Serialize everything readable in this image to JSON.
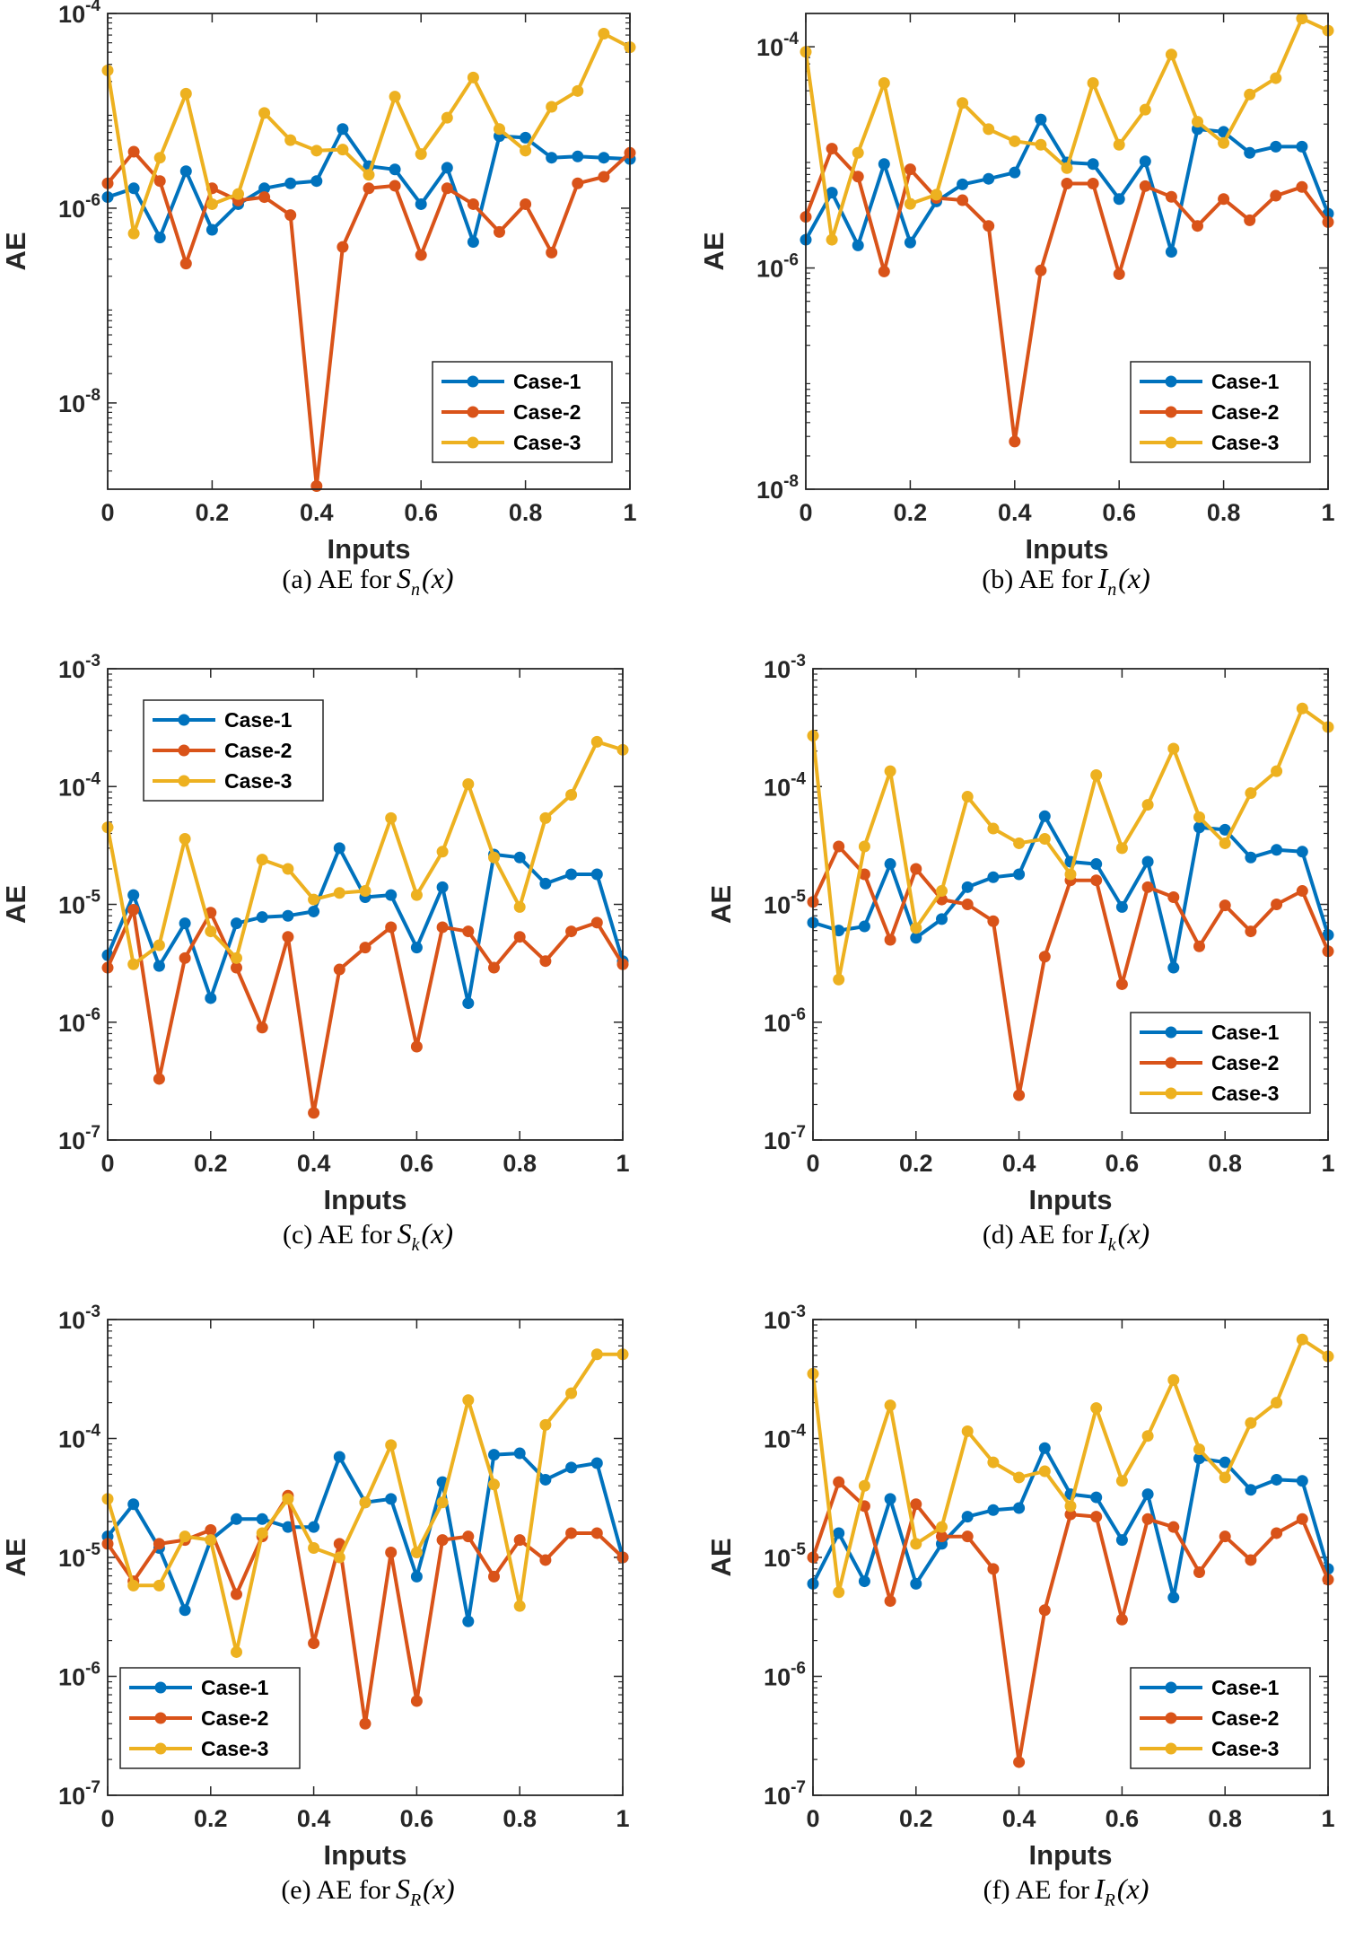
{
  "x_axis_label": "Inputs",
  "y_axis_label": "AE",
  "chart_data": [
    {
      "type": "line",
      "id": "a",
      "caption": "(a) AE for",
      "fn": "S",
      "sub": "n",
      "arg": "(x)",
      "ylog": [
        -9,
        -4
      ],
      "ylim": [
        1.3e-09,
        0.0001
      ],
      "yticks": [
        -8,
        -6,
        -4
      ],
      "xlim": [
        0,
        1
      ],
      "x": [
        0,
        0.05,
        0.1,
        0.15,
        0.2,
        0.25,
        0.3,
        0.35,
        0.4,
        0.45,
        0.5,
        0.55,
        0.6,
        0.65,
        0.7,
        0.75,
        0.8,
        0.85,
        0.9,
        0.95,
        1.0
      ],
      "legend": "bottom-right",
      "series": [
        {
          "name": "Case-1",
          "color": "#0072BD",
          "values": [
            1.3e-06,
            1.6e-06,
            5e-07,
            2.4e-06,
            6e-07,
            1.1e-06,
            1.6e-06,
            1.8e-06,
            1.9e-06,
            6.5e-06,
            2.7e-06,
            2.5e-06,
            1.1e-06,
            2.6e-06,
            4.5e-07,
            5.5e-06,
            5.3e-06,
            3.3e-06,
            3.4e-06,
            3.3e-06,
            3.2e-06
          ]
        },
        {
          "name": "Case-2",
          "color": "#D95319",
          "values": [
            1.8e-06,
            3.8e-06,
            1.9e-06,
            2.7e-07,
            1.6e-06,
            1.2e-06,
            1.3e-06,
            8.5e-07,
            1.4e-09,
            4e-07,
            1.6e-06,
            1.7e-06,
            3.3e-07,
            1.6e-06,
            1.1e-06,
            5.7e-07,
            1.1e-06,
            3.5e-07,
            1.8e-06,
            2.1e-06,
            3.7e-06
          ]
        },
        {
          "name": "Case-3",
          "color": "#EDB120",
          "values": [
            2.6e-05,
            5.5e-07,
            3.3e-06,
            1.5e-05,
            1.1e-06,
            1.4e-06,
            9.5e-06,
            5e-06,
            3.9e-06,
            4e-06,
            2.2e-06,
            1.4e-05,
            3.6e-06,
            8.5e-06,
            2.2e-05,
            6.5e-06,
            3.9e-06,
            1.1e-05,
            1.6e-05,
            6.2e-05,
            4.5e-05
          ]
        }
      ]
    },
    {
      "type": "line",
      "id": "b",
      "caption": "(b) AE for",
      "fn": "I",
      "sub": "n",
      "arg": "(x)",
      "ylog": [
        -8,
        -4
      ],
      "ylim": [
        1e-08,
        0.0002
      ],
      "yticks": [
        -8,
        -6,
        -4
      ],
      "xlim": [
        0,
        1
      ],
      "x": [
        0,
        0.05,
        0.1,
        0.15,
        0.2,
        0.25,
        0.3,
        0.35,
        0.4,
        0.45,
        0.5,
        0.55,
        0.6,
        0.65,
        0.7,
        0.75,
        0.8,
        0.85,
        0.9,
        0.95,
        1.0
      ],
      "legend": "bottom-right",
      "series": [
        {
          "name": "Case-1",
          "color": "#0072BD",
          "values": [
            1.8e-06,
            4.8e-06,
            1.6e-06,
            8.7e-06,
            1.7e-06,
            4e-06,
            5.7e-06,
            6.4e-06,
            7.3e-06,
            2.2e-05,
            9e-06,
            8.7e-06,
            4.2e-06,
            9.2e-06,
            1.4e-06,
            1.8e-05,
            1.7e-05,
            1.1e-05,
            1.25e-05,
            1.25e-05,
            3.1e-06
          ]
        },
        {
          "name": "Case-2",
          "color": "#D95319",
          "values": [
            2.9e-06,
            1.2e-05,
            6.7e-06,
            9.3e-07,
            7.8e-06,
            4.3e-06,
            4.1e-06,
            2.4e-06,
            2.7e-08,
            9.5e-07,
            5.8e-06,
            5.8e-06,
            8.8e-07,
            5.5e-06,
            4.4e-06,
            2.4e-06,
            4.2e-06,
            2.7e-06,
            4.5e-06,
            5.4e-06,
            2.6e-06
          ]
        },
        {
          "name": "Case-3",
          "color": "#EDB120",
          "values": [
            9e-05,
            1.8e-06,
            1.1e-05,
            4.7e-05,
            3.8e-06,
            4.6e-06,
            3.1e-05,
            1.8e-05,
            1.4e-05,
            1.3e-05,
            8e-06,
            4.7e-05,
            1.3e-05,
            2.7e-05,
            8.5e-05,
            2.1e-05,
            1.35e-05,
            3.7e-05,
            5.2e-05,
            0.00018,
            0.00014
          ]
        }
      ]
    },
    {
      "type": "line",
      "id": "c",
      "caption": "(c) AE for",
      "fn": "S",
      "sub": "k",
      "arg": "(x)",
      "ylog": [
        -7,
        -3
      ],
      "ylim": [
        1e-07,
        0.001
      ],
      "yticks": [
        -7,
        -6,
        -5,
        -4,
        -3
      ],
      "xlim": [
        0,
        1
      ],
      "x": [
        0,
        0.05,
        0.1,
        0.15,
        0.2,
        0.25,
        0.3,
        0.35,
        0.4,
        0.45,
        0.5,
        0.55,
        0.6,
        0.65,
        0.7,
        0.75,
        0.8,
        0.85,
        0.9,
        0.95,
        1.0
      ],
      "legend": "top-left",
      "series": [
        {
          "name": "Case-1",
          "color": "#0072BD",
          "values": [
            3.7e-06,
            1.2e-05,
            3e-06,
            6.9e-06,
            1.6e-06,
            6.9e-06,
            7.8e-06,
            8e-06,
            8.7e-06,
            3e-05,
            1.15e-05,
            1.2e-05,
            4.3e-06,
            1.4e-05,
            1.45e-06,
            2.65e-05,
            2.5e-05,
            1.5e-05,
            1.8e-05,
            1.8e-05,
            3.3e-06
          ]
        },
        {
          "name": "Case-2",
          "color": "#D95319",
          "values": [
            2.9e-06,
            9e-06,
            3.3e-07,
            3.5e-06,
            8.5e-06,
            2.9e-06,
            9e-07,
            5.3e-06,
            1.7e-07,
            2.8e-06,
            4.3e-06,
            6.4e-06,
            6.2e-07,
            6.4e-06,
            5.9e-06,
            2.9e-06,
            5.3e-06,
            3.3e-06,
            5.9e-06,
            7e-06,
            3.1e-06
          ]
        },
        {
          "name": "Case-3",
          "color": "#EDB120",
          "values": [
            4.5e-05,
            3.1e-06,
            4.5e-06,
            3.6e-05,
            5.9e-06,
            3.5e-06,
            2.4e-05,
            2e-05,
            1.1e-05,
            1.25e-05,
            1.3e-05,
            5.4e-05,
            1.2e-05,
            2.8e-05,
            0.000105,
            2.5e-05,
            9.5e-06,
            5.4e-05,
            8.5e-05,
            0.00024,
            0.000205
          ]
        }
      ]
    },
    {
      "type": "line",
      "id": "d",
      "caption": "(d) AE for",
      "fn": "I",
      "sub": "k",
      "arg": "(x)",
      "ylog": [
        -7,
        -3
      ],
      "ylim": [
        1e-07,
        0.001
      ],
      "yticks": [
        -7,
        -6,
        -5,
        -4,
        -3
      ],
      "xlim": [
        0,
        1
      ],
      "x": [
        0,
        0.05,
        0.1,
        0.15,
        0.2,
        0.25,
        0.3,
        0.35,
        0.4,
        0.45,
        0.5,
        0.55,
        0.6,
        0.65,
        0.7,
        0.75,
        0.8,
        0.85,
        0.9,
        0.95,
        1.0
      ],
      "legend": "bottom-right",
      "series": [
        {
          "name": "Case-1",
          "color": "#0072BD",
          "values": [
            7e-06,
            6e-06,
            6.5e-06,
            2.2e-05,
            5.2e-06,
            7.5e-06,
            1.4e-05,
            1.7e-05,
            1.8e-05,
            5.6e-05,
            2.3e-05,
            2.2e-05,
            9.5e-06,
            2.3e-05,
            2.9e-06,
            4.5e-05,
            4.3e-05,
            2.5e-05,
            2.9e-05,
            2.8e-05,
            5.5e-06
          ]
        },
        {
          "name": "Case-2",
          "color": "#D95319",
          "values": [
            1.05e-05,
            3.1e-05,
            1.8e-05,
            5e-06,
            2e-05,
            1.1e-05,
            1e-05,
            7.2e-06,
            2.4e-07,
            3.6e-06,
            1.6e-05,
            1.6e-05,
            2.1e-06,
            1.4e-05,
            1.15e-05,
            4.4e-06,
            9.8e-06,
            5.9e-06,
            1e-05,
            1.3e-05,
            4e-06
          ]
        },
        {
          "name": "Case-3",
          "color": "#EDB120",
          "values": [
            0.00027,
            2.3e-06,
            3.1e-05,
            0.000135,
            6.3e-06,
            1.3e-05,
            8.2e-05,
            4.4e-05,
            3.3e-05,
            3.6e-05,
            1.8e-05,
            0.000125,
            3e-05,
            7e-05,
            0.00021,
            5.5e-05,
            3.3e-05,
            8.8e-05,
            0.000135,
            0.00046,
            0.00032
          ]
        }
      ]
    },
    {
      "type": "line",
      "id": "e",
      "caption": "(e) AE for",
      "fn": "S",
      "sub": "R",
      "arg": "(x)",
      "ylog": [
        -7,
        -3
      ],
      "ylim": [
        1e-07,
        0.001
      ],
      "yticks": [
        -7,
        -6,
        -5,
        -4,
        -3
      ],
      "xlim": [
        0,
        1
      ],
      "x": [
        0,
        0.05,
        0.1,
        0.15,
        0.2,
        0.25,
        0.3,
        0.35,
        0.4,
        0.45,
        0.5,
        0.55,
        0.6,
        0.65,
        0.7,
        0.75,
        0.8,
        0.85,
        0.9,
        0.95,
        1.0
      ],
      "legend": "bottom-left",
      "series": [
        {
          "name": "Case-1",
          "color": "#0072BD",
          "values": [
            1.5e-05,
            2.8e-05,
            1.2e-05,
            3.6e-06,
            1.4e-05,
            2.1e-05,
            2.1e-05,
            1.8e-05,
            1.8e-05,
            7e-05,
            2.9e-05,
            3.1e-05,
            6.9e-06,
            4.3e-05,
            2.9e-06,
            7.3e-05,
            7.5e-05,
            4.5e-05,
            5.7e-05,
            6.2e-05,
            1e-05
          ]
        },
        {
          "name": "Case-2",
          "color": "#D95319",
          "values": [
            1.3e-05,
            6.3e-06,
            1.3e-05,
            1.4e-05,
            1.7e-05,
            4.9e-06,
            1.5e-05,
            3.3e-05,
            1.9e-06,
            1.3e-05,
            4e-07,
            1.1e-05,
            6.2e-07,
            1.4e-05,
            1.5e-05,
            6.9e-06,
            1.4e-05,
            9.5e-06,
            1.6e-05,
            1.6e-05,
            1e-05
          ]
        },
        {
          "name": "Case-3",
          "color": "#EDB120",
          "values": [
            3.1e-05,
            5.8e-06,
            5.8e-06,
            1.5e-05,
            1.4e-05,
            1.6e-06,
            1.6e-05,
            3.1e-05,
            1.2e-05,
            1e-05,
            2.9e-05,
            8.8e-05,
            1.1e-05,
            2.9e-05,
            0.00021,
            4.1e-05,
            3.9e-06,
            0.00013,
            0.00024,
            0.00051,
            0.00051
          ]
        }
      ]
    },
    {
      "type": "line",
      "id": "f",
      "caption": "(f) AE for",
      "fn": "I",
      "sub": "R",
      "arg": "(x)",
      "ylog": [
        -7,
        -3
      ],
      "ylim": [
        1e-07,
        0.001
      ],
      "yticks": [
        -7,
        -6,
        -5,
        -4,
        -3
      ],
      "xlim": [
        0,
        1
      ],
      "x": [
        0,
        0.05,
        0.1,
        0.15,
        0.2,
        0.25,
        0.3,
        0.35,
        0.4,
        0.45,
        0.5,
        0.55,
        0.6,
        0.65,
        0.7,
        0.75,
        0.8,
        0.85,
        0.9,
        0.95,
        1.0
      ],
      "legend": "bottom-right",
      "series": [
        {
          "name": "Case-1",
          "color": "#0072BD",
          "values": [
            6e-06,
            1.6e-05,
            6.3e-06,
            3.1e-05,
            6e-06,
            1.3e-05,
            2.2e-05,
            2.5e-05,
            2.6e-05,
            8.3e-05,
            3.4e-05,
            3.2e-05,
            1.4e-05,
            3.4e-05,
            4.6e-06,
            6.8e-05,
            6.3e-05,
            3.7e-05,
            4.5e-05,
            4.4e-05,
            8e-06
          ]
        },
        {
          "name": "Case-2",
          "color": "#D95319",
          "values": [
            1e-05,
            4.3e-05,
            2.7e-05,
            4.3e-06,
            2.8e-05,
            1.5e-05,
            1.5e-05,
            8e-06,
            1.9e-07,
            3.6e-06,
            2.3e-05,
            2.2e-05,
            3e-06,
            2.1e-05,
            1.8e-05,
            7.5e-06,
            1.5e-05,
            9.5e-06,
            1.6e-05,
            2.1e-05,
            6.5e-06
          ]
        },
        {
          "name": "Case-3",
          "color": "#EDB120",
          "values": [
            0.00035,
            5.1e-06,
            4e-05,
            0.00019,
            1.3e-05,
            1.8e-05,
            0.000115,
            6.3e-05,
            4.7e-05,
            5.3e-05,
            2.7e-05,
            0.00018,
            4.4e-05,
            0.000105,
            0.00031,
            8.1e-05,
            4.7e-05,
            0.000135,
            0.0002,
            0.00068,
            0.00049
          ]
        }
      ]
    }
  ]
}
